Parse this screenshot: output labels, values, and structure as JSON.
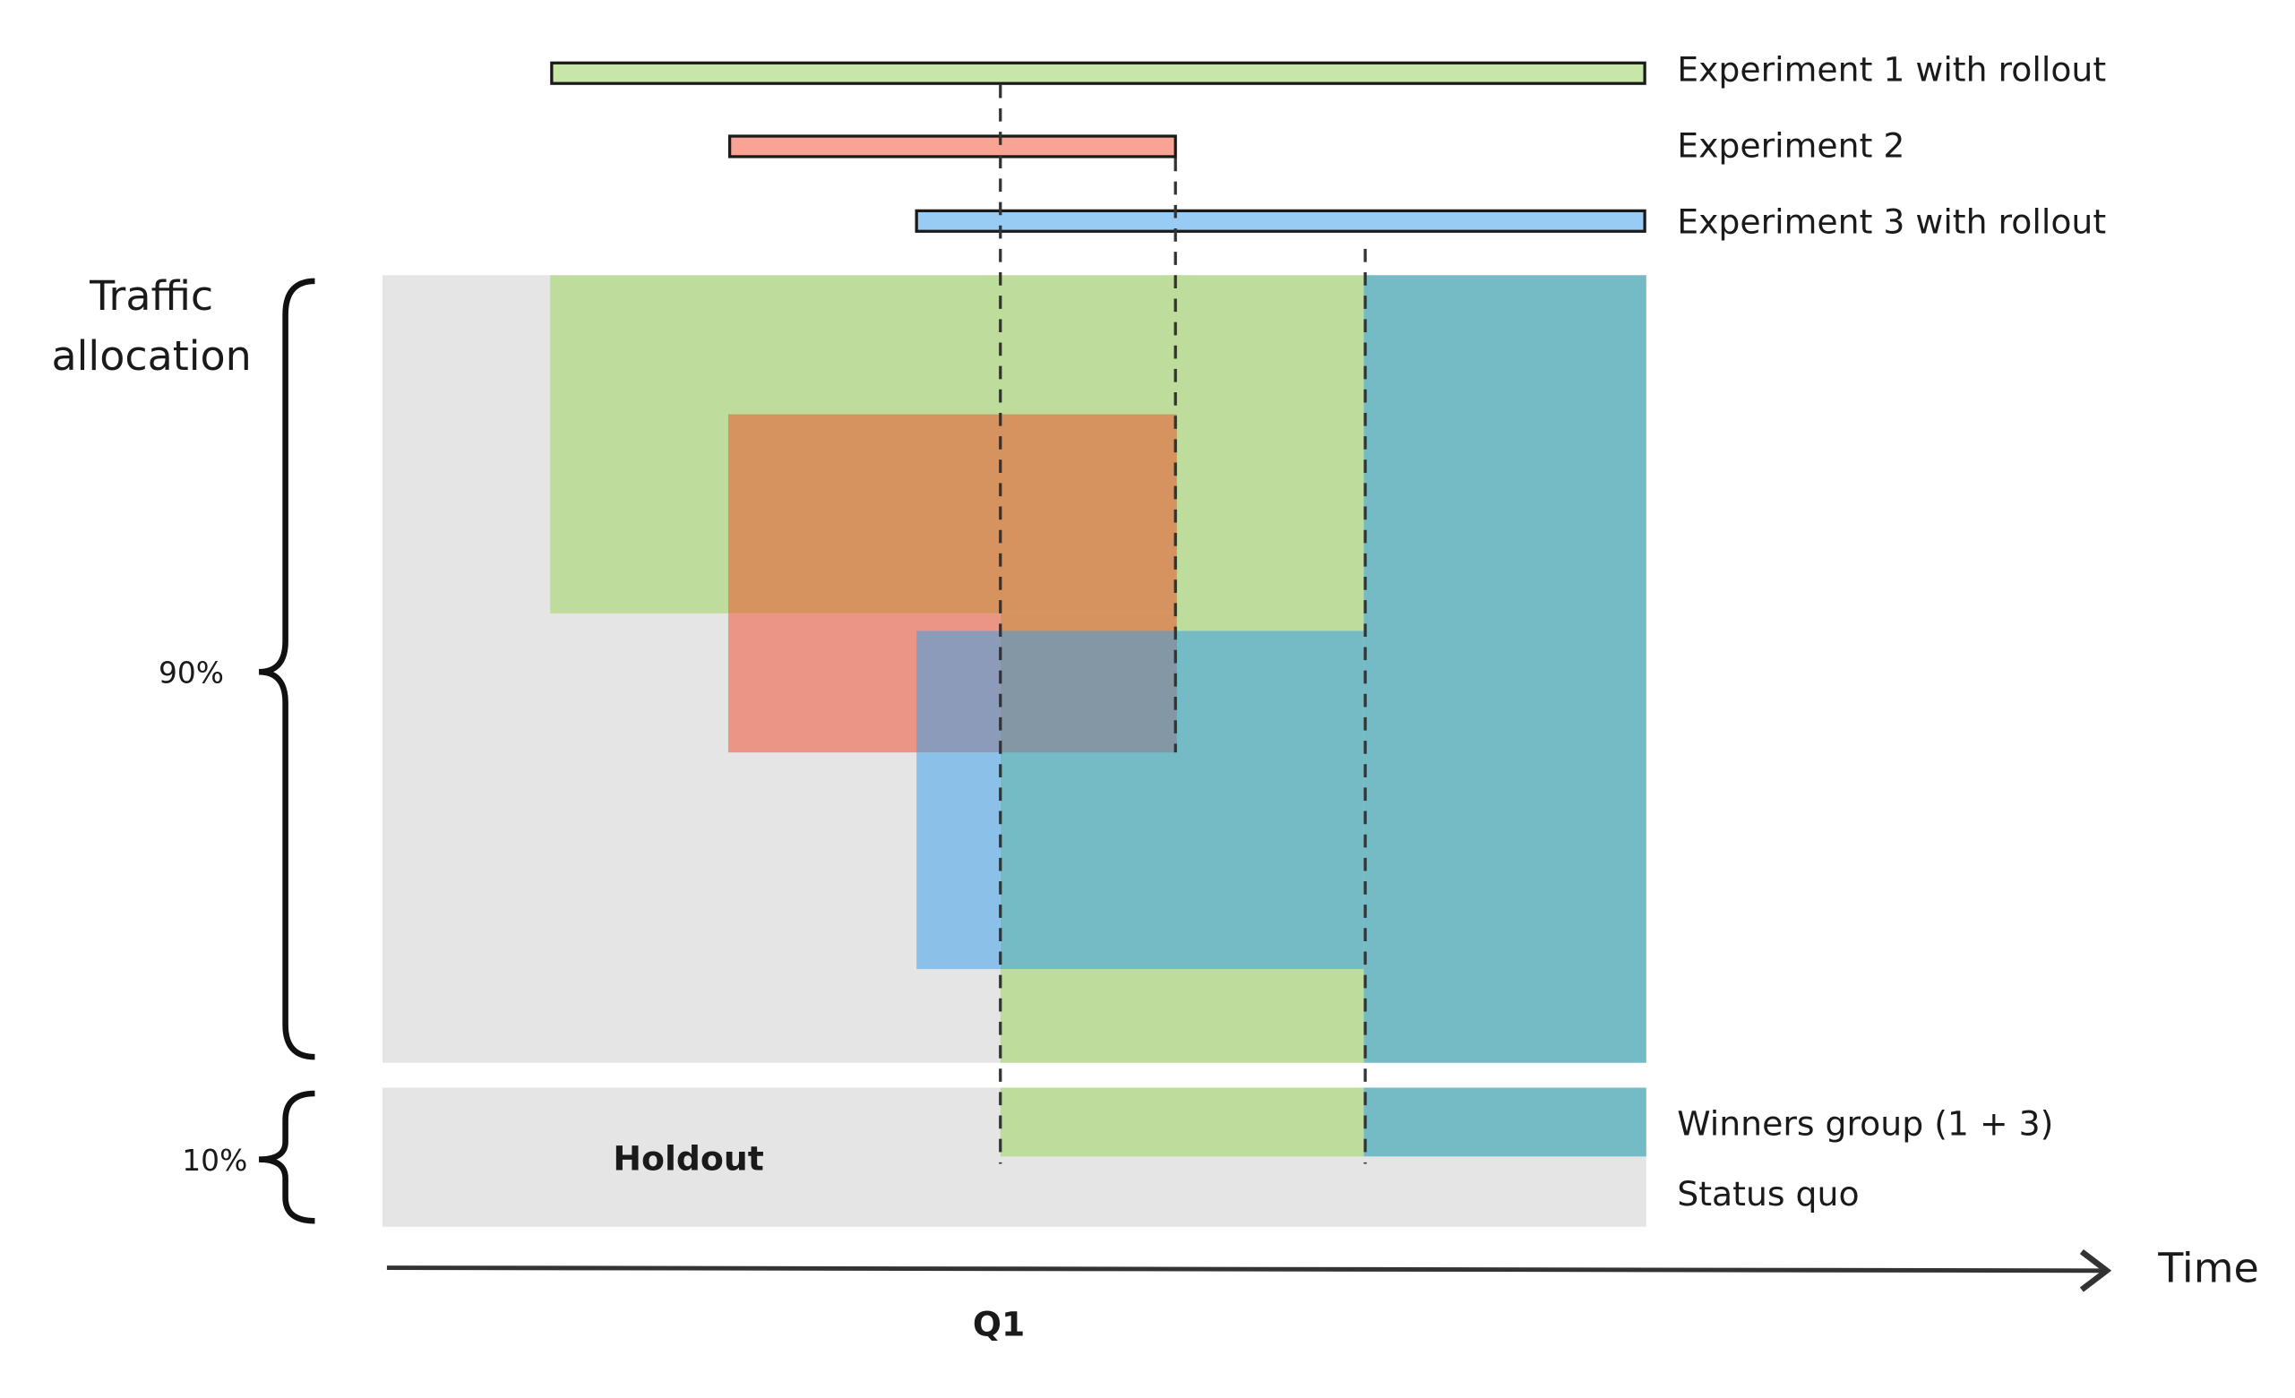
{
  "experiments": [
    {
      "label": "Experiment 1 with rollout",
      "color": "#c8e6a8"
    },
    {
      "label": "Experiment 2",
      "color": "#f8a393"
    },
    {
      "label": "Experiment 3 with rollout",
      "color": "#98ccf4"
    }
  ],
  "traffic_label_line1": "Traffic",
  "traffic_label_line2": "allocation",
  "main_share": "90%",
  "holdout_share": "10%",
  "holdout_label": "Holdout",
  "holdout_groups": [
    "Winners group (1 + 3)",
    "Status quo"
  ],
  "axis_label": "Time",
  "tick_label": "Q1",
  "colors": {
    "background_gray": "#e5e5e5",
    "green": "#bedd9c",
    "orange_overlap": "#d6925f",
    "salmon": "#eb9585",
    "purple_overlap": "#8d9bbb",
    "slate_overlap": "#8397a4",
    "blue": "#8bc1e8",
    "teal": "#74bbc5"
  }
}
